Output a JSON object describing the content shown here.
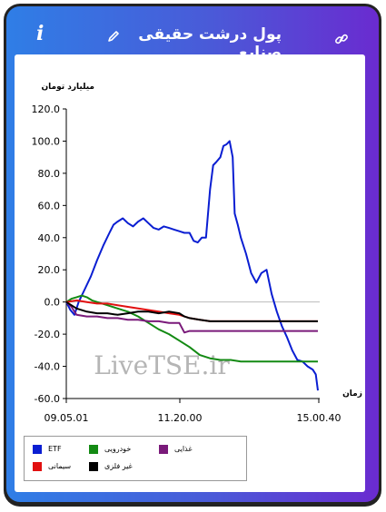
{
  "header": {
    "title": "پول درشت حقیقی صنایع",
    "info_icon": "i"
  },
  "icons": {
    "info": "info-icon",
    "edit": "pencil-icon",
    "link": "link-icon"
  },
  "chart_data": {
    "type": "line",
    "title": "",
    "ylabel": "میلیارد تومان",
    "xlabel": "زمان",
    "ylim": [
      -60,
      120
    ],
    "yticks": [
      "120.0",
      "100.0",
      "80.0",
      "60.0",
      "40.0",
      "20.0",
      "0.0",
      "-20.0",
      "-40.0",
      "-60.0"
    ],
    "xticks": [
      "09.05.01",
      "11.20.00",
      "15.00.40"
    ],
    "watermark": "LiveTSE.ir",
    "grid": false,
    "legend_position": "bottom-left",
    "series": [
      {
        "name": "ETF",
        "color": "#0a1ed2",
        "values": [
          [
            0,
            0
          ],
          [
            4,
            -5
          ],
          [
            8,
            -8
          ],
          [
            12,
            0
          ],
          [
            18,
            8
          ],
          [
            24,
            16
          ],
          [
            30,
            26
          ],
          [
            36,
            35
          ],
          [
            42,
            43
          ],
          [
            46,
            48
          ],
          [
            50,
            50
          ],
          [
            55,
            52
          ],
          [
            60,
            49
          ],
          [
            65,
            47
          ],
          [
            70,
            50
          ],
          [
            75,
            52
          ],
          [
            80,
            49
          ],
          [
            85,
            46
          ],
          [
            90,
            45
          ],
          [
            95,
            47
          ],
          [
            100,
            46
          ],
          [
            105,
            45
          ],
          [
            110,
            44
          ],
          [
            115,
            43
          ],
          [
            120,
            43
          ],
          [
            124,
            38
          ],
          [
            128,
            37
          ],
          [
            132,
            40
          ],
          [
            136,
            40
          ],
          [
            140,
            70
          ],
          [
            143,
            85
          ],
          [
            146,
            87
          ],
          [
            150,
            90
          ],
          [
            153,
            97
          ],
          [
            156,
            98
          ],
          [
            159,
            100
          ],
          [
            162,
            90
          ],
          [
            164,
            55
          ],
          [
            167,
            48
          ],
          [
            170,
            40
          ],
          [
            175,
            30
          ],
          [
            180,
            18
          ],
          [
            185,
            12
          ],
          [
            190,
            18
          ],
          [
            195,
            20
          ],
          [
            200,
            5
          ],
          [
            205,
            -6
          ],
          [
            210,
            -15
          ],
          [
            215,
            -22
          ],
          [
            220,
            -30
          ],
          [
            225,
            -36
          ],
          [
            230,
            -37
          ],
          [
            235,
            -40
          ],
          [
            240,
            -42
          ],
          [
            243,
            -45
          ],
          [
            245,
            -55
          ]
        ]
      },
      {
        "name": "خودرویی",
        "color": "#138a13",
        "values": [
          [
            0,
            0
          ],
          [
            5,
            2
          ],
          [
            10,
            3
          ],
          [
            15,
            4
          ],
          [
            20,
            3
          ],
          [
            25,
            1
          ],
          [
            30,
            0
          ],
          [
            40,
            -2
          ],
          [
            50,
            -4
          ],
          [
            60,
            -6
          ],
          [
            70,
            -9
          ],
          [
            80,
            -13
          ],
          [
            90,
            -17
          ],
          [
            100,
            -20
          ],
          [
            110,
            -24
          ],
          [
            120,
            -28
          ],
          [
            130,
            -33
          ],
          [
            140,
            -35
          ],
          [
            150,
            -36
          ],
          [
            160,
            -36
          ],
          [
            170,
            -37
          ],
          [
            180,
            -37
          ],
          [
            200,
            -37
          ],
          [
            245,
            -37
          ]
        ]
      },
      {
        "name": "غذایی",
        "color": "#7a1a7a",
        "values": [
          [
            0,
            0
          ],
          [
            5,
            -3
          ],
          [
            10,
            -8
          ],
          [
            20,
            -9
          ],
          [
            30,
            -9
          ],
          [
            40,
            -10
          ],
          [
            50,
            -10
          ],
          [
            60,
            -11
          ],
          [
            70,
            -11
          ],
          [
            80,
            -12
          ],
          [
            90,
            -12
          ],
          [
            100,
            -13
          ],
          [
            110,
            -13
          ],
          [
            115,
            -19
          ],
          [
            120,
            -18
          ],
          [
            130,
            -18
          ],
          [
            140,
            -18
          ],
          [
            150,
            -18
          ],
          [
            160,
            -18
          ],
          [
            170,
            -18
          ],
          [
            180,
            -18
          ],
          [
            245,
            -18
          ]
        ]
      },
      {
        "name": "سیمانی",
        "color": "#e11010",
        "values": [
          [
            0,
            0
          ],
          [
            10,
            1
          ],
          [
            20,
            0
          ],
          [
            30,
            -1
          ],
          [
            40,
            -1
          ],
          [
            50,
            -2
          ],
          [
            60,
            -3
          ],
          [
            70,
            -4
          ],
          [
            80,
            -5
          ],
          [
            90,
            -6
          ],
          [
            100,
            -7
          ],
          [
            110,
            -8
          ],
          [
            115,
            -9
          ],
          [
            120,
            -10
          ],
          [
            130,
            -11
          ],
          [
            140,
            -12
          ],
          [
            150,
            -12
          ],
          [
            160,
            -12
          ],
          [
            170,
            -12
          ],
          [
            180,
            -12
          ],
          [
            245,
            -12
          ]
        ]
      },
      {
        "name": "غیر فلزی",
        "color": "#000000",
        "values": [
          [
            0,
            0
          ],
          [
            10,
            -4
          ],
          [
            20,
            -6
          ],
          [
            30,
            -7
          ],
          [
            40,
            -7
          ],
          [
            50,
            -8
          ],
          [
            60,
            -7
          ],
          [
            70,
            -6
          ],
          [
            80,
            -6
          ],
          [
            90,
            -7
          ],
          [
            100,
            -6
          ],
          [
            110,
            -7
          ],
          [
            115,
            -9
          ],
          [
            120,
            -10
          ],
          [
            130,
            -11
          ],
          [
            140,
            -12
          ],
          [
            150,
            -12
          ],
          [
            160,
            -12
          ],
          [
            170,
            -12
          ],
          [
            180,
            -12
          ],
          [
            245,
            -12
          ]
        ]
      }
    ]
  }
}
